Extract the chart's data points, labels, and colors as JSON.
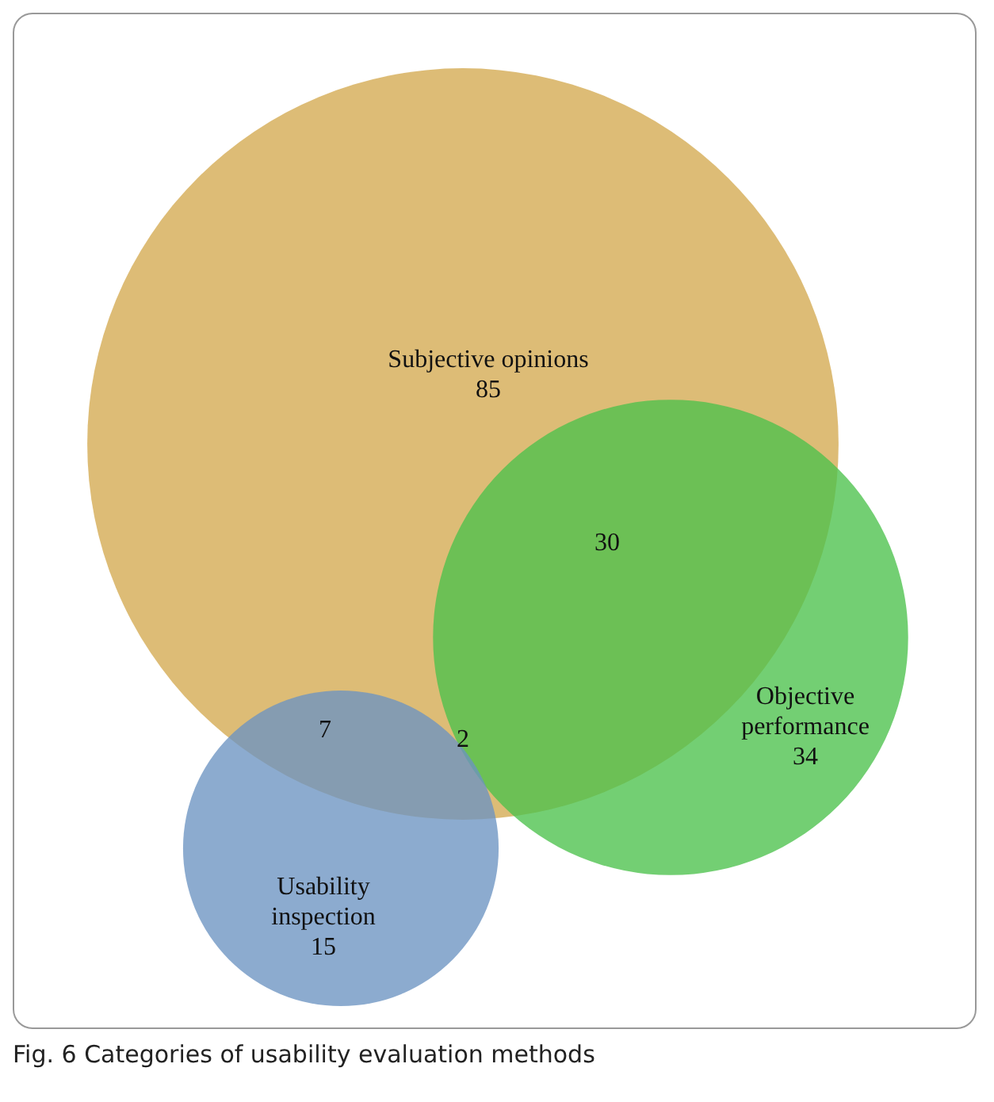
{
  "chart_data": {
    "type": "other",
    "title": "Fig. 6  Categories of usability evaluation methods",
    "categories": [
      "Subjective opinions",
      "Objective performance",
      "Usability inspection"
    ],
    "values": [
      85,
      34,
      15
    ],
    "colors": [
      "#d4a94f",
      "#4cc24c",
      "#6b94c2"
    ],
    "annotations": [
      "30",
      "7",
      "2"
    ],
    "data_labels": true
  }
}
